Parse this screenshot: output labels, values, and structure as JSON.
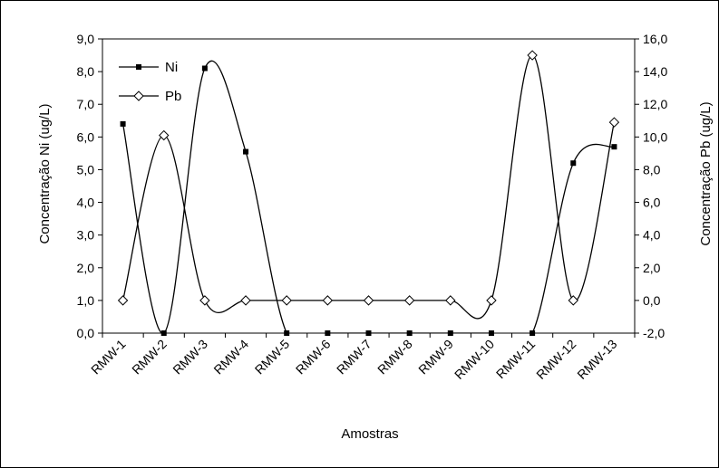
{
  "chart_data": {
    "type": "line",
    "title": "",
    "categories": [
      "RMW-1",
      "RMW-2",
      "RMW-3",
      "RMW-4",
      "RMW-5",
      "RMW-6",
      "RMW-7",
      "RMW-8",
      "RMW-9",
      "RMW-10",
      "RMW-11",
      "RMW-12",
      "RMW-13"
    ],
    "xlabel": "Amostras",
    "ylabel_left": "Concentração Ni (ug/L)",
    "ylabel_right": "Concentração Pb (ug/L)",
    "ylim_left": [
      0,
      9
    ],
    "ylim_right": [
      -2,
      16
    ],
    "yticks_left": [
      "0,0",
      "1,0",
      "2,0",
      "3,0",
      "4,0",
      "5,0",
      "6,0",
      "7,0",
      "8,0",
      "9,0"
    ],
    "yticks_right": [
      "-2,0",
      "0,0",
      "2,0",
      "4,0",
      "6,0",
      "8,0",
      "10,0",
      "12,0",
      "14,0",
      "16,0"
    ],
    "grid": false,
    "legend_position": "top-left",
    "series": [
      {
        "name": "Ni",
        "axis": "left",
        "marker": "square",
        "color": "#000000",
        "values": [
          6.4,
          0.0,
          8.1,
          5.55,
          0.0,
          0.0,
          0.0,
          0.0,
          0.0,
          0.0,
          0.0,
          5.2,
          5.7
        ]
      },
      {
        "name": "Pb",
        "axis": "right",
        "marker": "diamond",
        "color": "#000000",
        "values": [
          0.0,
          10.1,
          0.0,
          0.0,
          0.0,
          0.0,
          0.0,
          0.0,
          0.0,
          0.0,
          15.0,
          0.0,
          10.9
        ]
      }
    ]
  }
}
